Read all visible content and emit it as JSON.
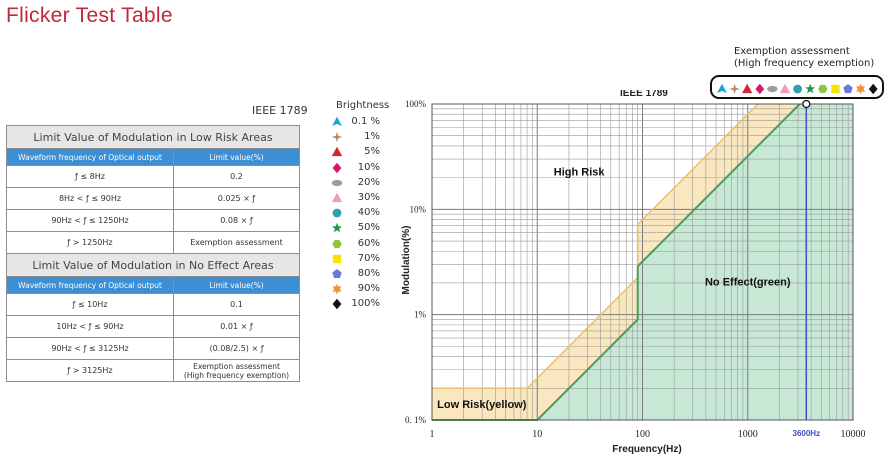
{
  "title": "Flicker Test Table",
  "table": {
    "standard": "IEEE 1789",
    "section1_title": "Limit Value of Modulation in Low Risk Areas",
    "section2_title": "Limit Value of Modulation in No Effect Areas",
    "col_freq": "Waveform frequency of Optical output",
    "col_limit": "Limit value(%)",
    "low_risk_rows": [
      {
        "freq": "ƒ ≤ 8Hz",
        "limit": "0.2"
      },
      {
        "freq": "8Hz < ƒ ≤ 90Hz",
        "limit": "0.025 × ƒ"
      },
      {
        "freq": "90Hz < ƒ ≤ 1250Hz",
        "limit": "0.08 × ƒ"
      },
      {
        "freq": "ƒ > 1250Hz",
        "limit": "Exemption assessment"
      }
    ],
    "no_effect_rows": [
      {
        "freq": "ƒ ≤ 10Hz",
        "limit": "0.1"
      },
      {
        "freq": "10Hz < ƒ ≤ 90Hz",
        "limit": "0.01 × ƒ"
      },
      {
        "freq": "90Hz < ƒ ≤ 3125Hz",
        "limit": "(0.08/2.5) × ƒ"
      },
      {
        "freq": "ƒ > 3125Hz",
        "limit_line1": "Exemption assessment",
        "limit_line2": "(High frequency exemption)"
      }
    ]
  },
  "legend": {
    "title": "Brightness",
    "items": [
      {
        "label": "0.1 %",
        "shape": "triangle-up-icon",
        "color": "#1ea0d8"
      },
      {
        "label": "1%",
        "shape": "star4-icon",
        "color": "#b8896b"
      },
      {
        "label": "5%",
        "shape": "triangle-icon",
        "color": "#d6262c"
      },
      {
        "label": "10%",
        "shape": "diamond-icon",
        "color": "#d6186e"
      },
      {
        "label": "20%",
        "shape": "ellipse-icon",
        "color": "#9c9c9c"
      },
      {
        "label": "30%",
        "shape": "triangle-icon",
        "color": "#f29bc0"
      },
      {
        "label": "40%",
        "shape": "circle-icon",
        "color": "#31a0a8"
      },
      {
        "label": "50%",
        "shape": "star5-icon",
        "color": "#1e9a4a"
      },
      {
        "label": "60%",
        "shape": "hexagon-icon",
        "color": "#8cc63f"
      },
      {
        "label": "70%",
        "shape": "square-icon",
        "color": "#f7e400"
      },
      {
        "label": "80%",
        "shape": "pentagon-icon",
        "color": "#6b78d6"
      },
      {
        "label": "90%",
        "shape": "star6-icon",
        "color": "#f39233"
      },
      {
        "label": "100%",
        "shape": "diamond-icon",
        "color": "#111111"
      }
    ]
  },
  "exemption": {
    "line1": "Exemption assessment",
    "line2": "(High frequency exemption)"
  },
  "chart_data": {
    "type": "line",
    "title": "IEEE 1789",
    "xlabel": "Frequency(Hz)",
    "ylabel": "Modulation(%)",
    "x_scale": "log",
    "y_scale": "log",
    "xlim": [
      1,
      10000
    ],
    "ylim": [
      0.1,
      100
    ],
    "x_ticks": [
      "1",
      "10",
      "100",
      "1000",
      "10000"
    ],
    "y_ticks": [
      "0. 1%",
      "1%",
      "10%",
      "100%"
    ],
    "grid": true,
    "series": [
      {
        "name": "Low Risk(yellow)",
        "color": "#f5d48a",
        "points": [
          [
            1,
            0.2
          ],
          [
            8,
            0.2
          ],
          [
            90,
            2.25
          ],
          [
            90,
            7.2
          ],
          [
            1250,
            100
          ]
        ]
      },
      {
        "name": "No Effect(green)",
        "color": "#5aa06a",
        "points": [
          [
            1,
            0.1
          ],
          [
            10,
            0.1
          ],
          [
            90,
            0.9
          ],
          [
            90,
            2.88
          ],
          [
            3125,
            100
          ]
        ]
      }
    ],
    "region_labels": {
      "high": "High Risk",
      "low": "Low Risk(yellow)",
      "no_effect": "No Effect(green)"
    },
    "vline": {
      "x": 3600,
      "label": "3600Hz",
      "color": "#3a4fc8"
    }
  }
}
